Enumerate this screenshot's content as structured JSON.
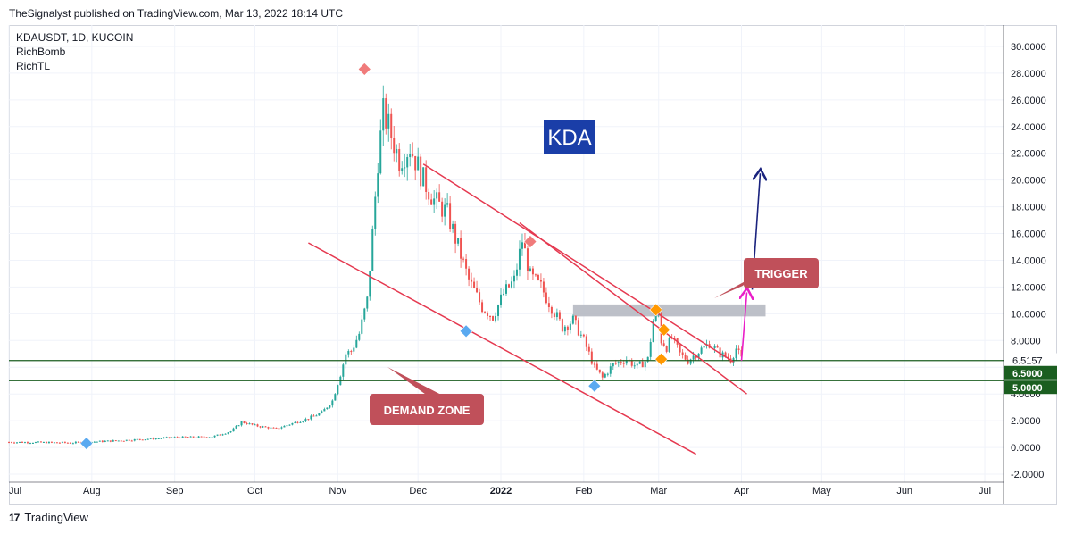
{
  "header": {
    "publisher": "TheSignalyst published on TradingView.com, Mar 13, 2022 18:14 UTC"
  },
  "footer": {
    "brand": "TradingView",
    "logo_glyph": "17"
  },
  "colors": {
    "up": "#26a69a",
    "down": "#ef5350",
    "trendline": "#e53950",
    "zone_line": "#1b5e20",
    "resistance_band": "#b2b5be",
    "kda_box": "#1a3ea8",
    "label_box": "#c0505a",
    "arrow_blue": "#1a237e",
    "arrow_pink": "#e91ec8",
    "diamond_red": "#f07b7b",
    "diamond_blue": "#5aa9f0",
    "diamond_orange": "#ff9800"
  },
  "chart_data": {
    "type": "candlestick",
    "symbol": "KDAUSDT, 1D, KUCOIN",
    "indicators": [
      "RichBomb",
      "RichTL"
    ],
    "title": "KDA",
    "x_axis": {
      "ticks": [
        "Jul",
        "Aug",
        "Sep",
        "Oct",
        "Nov",
        "Dec",
        "2022",
        "Feb",
        "Mar",
        "Apr",
        "May",
        "Jun",
        "Jul"
      ],
      "range": [
        "2021-07-01",
        "2022-07-08"
      ]
    },
    "y_axis": {
      "ticks": [
        "-2.0000",
        "0.0000",
        "2.0000",
        "4.0000",
        "6.0000",
        "8.0000",
        "10.0000",
        "12.0000",
        "14.0000",
        "16.0000",
        "18.0000",
        "20.0000",
        "22.0000",
        "24.0000",
        "26.0000",
        "28.0000",
        "30.0000"
      ],
      "range": [
        -2.6,
        31.6
      ]
    },
    "price_labels": [
      {
        "text": "6.5157",
        "value": 6.5157,
        "style": "dark"
      },
      {
        "text": "6.5000",
        "value": 6.5,
        "style": "green"
      },
      {
        "text": "5.0000",
        "value": 5.0,
        "style": "green"
      }
    ],
    "path_points": [
      [
        "2021-07-01",
        0.4
      ],
      [
        "2021-07-25",
        0.35
      ],
      [
        "2021-08-10",
        0.5
      ],
      [
        "2021-09-01",
        0.75
      ],
      [
        "2021-09-15",
        0.8
      ],
      [
        "2021-09-22",
        1.2
      ],
      [
        "2021-09-26",
        1.9
      ],
      [
        "2021-10-02",
        1.6
      ],
      [
        "2021-10-09",
        1.4
      ],
      [
        "2021-10-15",
        1.8
      ],
      [
        "2021-10-20",
        2.1
      ],
      [
        "2021-10-26",
        2.6
      ],
      [
        "2021-10-30",
        3.5
      ],
      [
        "2021-11-02",
        5.5
      ],
      [
        "2021-11-04",
        7.0
      ],
      [
        "2021-11-06",
        7.2
      ],
      [
        "2021-11-09",
        8.5
      ],
      [
        "2021-11-12",
        11.0
      ],
      [
        "2021-11-14",
        16.0
      ],
      [
        "2021-11-16",
        21.5
      ],
      [
        "2021-11-18",
        25.0
      ],
      [
        "2021-11-20",
        24.0
      ],
      [
        "2021-11-24",
        21.5
      ],
      [
        "2021-11-28",
        22.5
      ],
      [
        "2021-12-03",
        20.0
      ],
      [
        "2021-12-07",
        18.5
      ],
      [
        "2021-12-12",
        17.5
      ],
      [
        "2021-12-16",
        15.0
      ],
      [
        "2021-12-20",
        12.5
      ],
      [
        "2021-12-25",
        10.5
      ],
      [
        "2021-12-29",
        9.8
      ],
      [
        "2022-01-02",
        11.5
      ],
      [
        "2022-01-06",
        12.5
      ],
      [
        "2022-01-09",
        15.5
      ],
      [
        "2022-01-12",
        12.8
      ],
      [
        "2022-01-16",
        12.0
      ],
      [
        "2022-01-20",
        10.5
      ],
      [
        "2022-01-24",
        9.0
      ],
      [
        "2022-01-28",
        9.5
      ],
      [
        "2022-02-01",
        8.0
      ],
      [
        "2022-02-05",
        6.0
      ],
      [
        "2022-02-08",
        5.2
      ],
      [
        "2022-02-12",
        6.2
      ],
      [
        "2022-02-17",
        6.6
      ],
      [
        "2022-02-21",
        6.0
      ],
      [
        "2022-02-25",
        6.6
      ],
      [
        "2022-02-27",
        9.5
      ],
      [
        "2022-02-29",
        10.0
      ],
      [
        "2022-03-02",
        8.0
      ],
      [
        "2022-03-04",
        7.5
      ],
      [
        "2022-03-06",
        8.2
      ],
      [
        "2022-03-09",
        7.0
      ],
      [
        "2022-03-12",
        6.5
      ],
      [
        "2022-03-16",
        7.2
      ],
      [
        "2022-03-20",
        7.8
      ],
      [
        "2022-03-24",
        7.0
      ],
      [
        "2022-03-28",
        6.6
      ],
      [
        "2022-03-30",
        7.4
      ],
      [
        "2022-04-01",
        6.6
      ]
    ],
    "drawings": {
      "upper_trendline": {
        "from": [
          "2021-12-03",
          21.2
        ],
        "to": [
          "2022-03-29",
          6.4
        ]
      },
      "upper_trendline_ext": {
        "from": [
          "2022-01-08",
          16.8
        ],
        "to": [
          "2022-04-03",
          4.0
        ]
      },
      "lower_trendline": {
        "from": [
          "2021-10-21",
          15.3
        ],
        "to": [
          "2022-03-15",
          -0.5
        ]
      },
      "resistance_band": {
        "from": "2022-01-28",
        "to": "2022-04-10",
        "top": 10.7,
        "bottom": 9.8
      },
      "zone_lines": [
        6.5,
        5.0
      ],
      "blue_arrow": {
        "from": [
          "2022-04-05",
          11.8
        ],
        "to": [
          "2022-04-08",
          20.5
        ]
      },
      "pink_arrow": {
        "from": [
          "2022-04-01",
          6.5
        ],
        "to": [
          "2022-04-03",
          11.6
        ]
      }
    },
    "markers": [
      {
        "date": "2021-07-30",
        "value": 0.3,
        "color": "blue"
      },
      {
        "date": "2021-11-11",
        "value": 28.3,
        "color": "red"
      },
      {
        "date": "2022-01-12",
        "value": 15.4,
        "color": "red"
      },
      {
        "date": "2021-12-19",
        "value": 8.7,
        "color": "blue"
      },
      {
        "date": "2022-02-05",
        "value": 4.6,
        "color": "blue"
      },
      {
        "date": "2022-02-28",
        "value": 10.3,
        "color": "orange"
      },
      {
        "date": "2022-03-03",
        "value": 8.8,
        "color": "orange"
      },
      {
        "date": "2022-03-02",
        "value": 6.6,
        "color": "orange"
      }
    ],
    "annotations": [
      {
        "text": "KDA",
        "style": "title-box"
      },
      {
        "text": "TRIGGER",
        "style": "label"
      },
      {
        "text": "DEMAND ZONE",
        "style": "label"
      }
    ]
  }
}
